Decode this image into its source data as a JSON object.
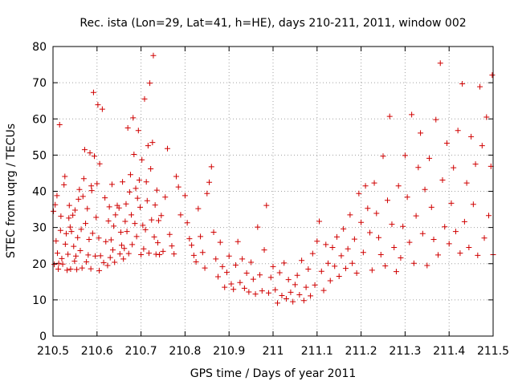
{
  "chart_data": {
    "type": "scatter",
    "title": "Rec. ista (Lon=29, Lat=41, h=HE), days 210-211, 2011, window 002",
    "xlabel": "GPS time / Days of year 2011",
    "ylabel": "STEC from uqrg / TECUs",
    "xlim": [
      210.5,
      211.5
    ],
    "ylim": [
      0,
      80
    ],
    "x_ticks": [
      210.5,
      210.6,
      210.7,
      210.8,
      210.9,
      211,
      211.1,
      211.2,
      211.3,
      211.4,
      211.5
    ],
    "x_tick_labels": [
      "210.5",
      "210.6",
      "210.7",
      "210.8",
      "210.9",
      "211",
      "211.1",
      "211.2",
      "211.3",
      "211.4",
      "211.5"
    ],
    "y_ticks": [
      0,
      10,
      20,
      30,
      40,
      50,
      60,
      70,
      80
    ],
    "y_tick_labels": [
      "0",
      "10",
      "20",
      "30",
      "40",
      "50",
      "60",
      "70",
      "80"
    ],
    "grid": true,
    "marker": "+",
    "color": "#d00000",
    "points": [
      [
        210.501,
        34.5
      ],
      [
        210.503,
        19.8
      ],
      [
        210.505,
        36.3
      ],
      [
        210.507,
        26.3
      ],
      [
        210.509,
        38.8
      ],
      [
        210.51,
        22.9
      ],
      [
        210.512,
        18.5
      ],
      [
        210.513,
        20.1
      ],
      [
        210.515,
        58.4
      ],
      [
        210.517,
        29.2
      ],
      [
        210.518,
        33.1
      ],
      [
        210.52,
        21.4
      ],
      [
        210.522,
        19.9
      ],
      [
        210.525,
        41.8
      ],
      [
        210.527,
        44.1
      ],
      [
        210.528,
        25.4
      ],
      [
        210.53,
        28.3
      ],
      [
        210.532,
        18.2
      ],
      [
        210.534,
        22.6
      ],
      [
        210.536,
        32.6
      ],
      [
        210.537,
        36.1
      ],
      [
        210.539,
        30.1
      ],
      [
        210.54,
        18.5
      ],
      [
        210.542,
        28.9
      ],
      [
        210.545,
        33.4
      ],
      [
        210.547,
        24.8
      ],
      [
        210.549,
        20.7
      ],
      [
        210.55,
        34.8
      ],
      [
        210.552,
        22.1
      ],
      [
        210.554,
        18.4
      ],
      [
        210.556,
        27.2
      ],
      [
        210.558,
        37.8
      ],
      [
        210.56,
        40.5
      ],
      [
        210.562,
        23.6
      ],
      [
        210.564,
        29.5
      ],
      [
        210.566,
        18.8
      ],
      [
        210.568,
        38.6
      ],
      [
        210.57,
        43.5
      ],
      [
        210.572,
        51.5
      ],
      [
        210.574,
        31.1
      ],
      [
        210.576,
        20.5
      ],
      [
        210.578,
        35.2
      ],
      [
        210.58,
        22.4
      ],
      [
        210.582,
        26.7
      ],
      [
        210.584,
        50.6
      ],
      [
        210.586,
        18.6
      ],
      [
        210.587,
        41.5
      ],
      [
        210.588,
        40.2
      ],
      [
        210.59,
        28.4
      ],
      [
        210.592,
        67.3
      ],
      [
        210.594,
        49.7
      ],
      [
        210.596,
        22.1
      ],
      [
        210.598,
        32.8
      ],
      [
        210.6,
        42.1
      ],
      [
        210.602,
        63.9
      ],
      [
        210.604,
        27.1
      ],
      [
        210.605,
        18.1
      ],
      [
        210.606,
        47.6
      ],
      [
        210.608,
        22.2
      ],
      [
        210.612,
        62.7
      ],
      [
        210.615,
        20.3
      ],
      [
        210.618,
        38.2
      ],
      [
        210.62,
        26.1
      ],
      [
        210.624,
        19.5
      ],
      [
        210.626,
        31.8
      ],
      [
        210.628,
        35.7
      ],
      [
        210.63,
        21.7
      ],
      [
        210.632,
        26.6
      ],
      [
        210.634,
        41.9
      ],
      [
        210.636,
        23.8
      ],
      [
        210.638,
        30.4
      ],
      [
        210.64,
        20.4
      ],
      [
        210.642,
        33.5
      ],
      [
        210.646,
        36.1
      ],
      [
        210.65,
        35.4
      ],
      [
        210.652,
        22.7
      ],
      [
        210.654,
        28.7
      ],
      [
        210.656,
        25.1
      ],
      [
        210.658,
        42.6
      ],
      [
        210.66,
        21.3
      ],
      [
        210.662,
        24.2
      ],
      [
        210.664,
        31.7
      ],
      [
        210.666,
        36.5
      ],
      [
        210.668,
        28.9
      ],
      [
        210.67,
        57.5
      ],
      [
        210.672,
        22.8
      ],
      [
        210.674,
        39.8
      ],
      [
        210.676,
        44.6
      ],
      [
        210.678,
        33.5
      ],
      [
        210.68,
        25.3
      ],
      [
        210.682,
        60.3
      ],
      [
        210.684,
        50.2
      ],
      [
        210.686,
        31.1
      ],
      [
        210.688,
        40.8
      ],
      [
        210.69,
        27.5
      ],
      [
        210.692,
        38.1
      ],
      [
        210.694,
        56.8
      ],
      [
        210.696,
        43.1
      ],
      [
        210.698,
        35.6
      ],
      [
        210.7,
        22.5
      ],
      [
        210.702,
        48.7
      ],
      [
        210.704,
        30.6
      ],
      [
        210.706,
        24.1
      ],
      [
        210.708,
        65.5
      ],
      [
        210.71,
        29.4
      ],
      [
        210.712,
        42.6
      ],
      [
        210.714,
        37.4
      ],
      [
        210.716,
        52.6
      ],
      [
        210.718,
        22.9
      ],
      [
        210.72,
        69.9
      ],
      [
        210.722,
        46.2
      ],
      [
        210.724,
        32.1
      ],
      [
        210.726,
        53.5
      ],
      [
        210.728,
        77.5
      ],
      [
        210.73,
        27.4
      ],
      [
        210.732,
        36.2
      ],
      [
        210.734,
        22.6
      ],
      [
        210.736,
        40.3
      ],
      [
        210.738,
        25.8
      ],
      [
        210.74,
        31.9
      ],
      [
        210.742,
        22.5
      ],
      [
        210.746,
        33.3
      ],
      [
        210.75,
        23.4
      ],
      [
        210.755,
        38.4
      ],
      [
        210.76,
        51.8
      ],
      [
        210.765,
        28.1
      ],
      [
        210.77,
        24.9
      ],
      [
        210.775,
        22.7
      ],
      [
        210.78,
        44.1
      ],
      [
        210.785,
        41.2
      ],
      [
        210.79,
        33.5
      ],
      [
        210.8,
        38.8
      ],
      [
        210.805,
        31.3
      ],
      [
        210.81,
        26.9
      ],
      [
        210.815,
        25.1
      ],
      [
        210.82,
        22.3
      ],
      [
        210.825,
        20.5
      ],
      [
        210.83,
        35.2
      ],
      [
        210.835,
        27.5
      ],
      [
        210.84,
        23.1
      ],
      [
        210.845,
        18.8
      ],
      [
        210.85,
        39.4
      ],
      [
        210.855,
        42.5
      ],
      [
        210.86,
        46.8
      ],
      [
        210.865,
        28.7
      ],
      [
        210.87,
        21.3
      ],
      [
        210.875,
        16.4
      ],
      [
        210.88,
        25.9
      ],
      [
        210.885,
        19.2
      ],
      [
        210.89,
        13.5
      ],
      [
        210.895,
        17.6
      ],
      [
        210.9,
        22.1
      ],
      [
        210.905,
        14.4
      ],
      [
        210.91,
        12.9
      ],
      [
        210.915,
        19.6
      ],
      [
        210.92,
        26.1
      ],
      [
        210.925,
        14.8
      ],
      [
        210.93,
        21.3
      ],
      [
        210.935,
        13.2
      ],
      [
        210.94,
        17.4
      ],
      [
        210.945,
        12.2
      ],
      [
        210.95,
        20.4
      ],
      [
        210.955,
        15.7
      ],
      [
        210.96,
        11.6
      ],
      [
        210.965,
        30.1
      ],
      [
        210.97,
        16.9
      ],
      [
        210.975,
        12.5
      ],
      [
        210.98,
        23.8
      ],
      [
        210.985,
        36.1
      ],
      [
        210.99,
        11.9
      ],
      [
        210.995,
        16.2
      ],
      [
        211,
        19.2
      ],
      [
        211.005,
        12.8
      ],
      [
        211.01,
        9.1
      ],
      [
        211.015,
        17.5
      ],
      [
        211.02,
        11.2
      ],
      [
        211.025,
        20.2
      ],
      [
        211.03,
        10.3
      ],
      [
        211.035,
        15.6
      ],
      [
        211.04,
        12.1
      ],
      [
        211.045,
        9.5
      ],
      [
        211.05,
        14.2
      ],
      [
        211.055,
        16.8
      ],
      [
        211.06,
        11.4
      ],
      [
        211.065,
        20.9
      ],
      [
        211.07,
        9.8
      ],
      [
        211.075,
        13.5
      ],
      [
        211.08,
        18.5
      ],
      [
        211.085,
        11.1
      ],
      [
        211.09,
        22.8
      ],
      [
        211.095,
        14.1
      ],
      [
        211.1,
        26.2
      ],
      [
        211.105,
        31.7
      ],
      [
        211.11,
        17.9
      ],
      [
        211.115,
        12.6
      ],
      [
        211.12,
        25.3
      ],
      [
        211.125,
        20.1
      ],
      [
        211.13,
        15.3
      ],
      [
        211.135,
        24.5
      ],
      [
        211.14,
        19.3
      ],
      [
        211.145,
        27.4
      ],
      [
        211.15,
        16.5
      ],
      [
        211.155,
        22.2
      ],
      [
        211.16,
        29.6
      ],
      [
        211.165,
        18.7
      ],
      [
        211.17,
        24.1
      ],
      [
        211.175,
        33.5
      ],
      [
        211.18,
        20.1
      ],
      [
        211.185,
        26.8
      ],
      [
        211.19,
        17.4
      ],
      [
        211.195,
        39.4
      ],
      [
        211.2,
        31.4
      ],
      [
        211.205,
        23.1
      ],
      [
        211.21,
        41.5
      ],
      [
        211.215,
        35.3
      ],
      [
        211.22,
        28.6
      ],
      [
        211.225,
        18.2
      ],
      [
        211.23,
        42.3
      ],
      [
        211.235,
        33.9
      ],
      [
        211.24,
        27.2
      ],
      [
        211.245,
        22.5
      ],
      [
        211.25,
        49.7
      ],
      [
        211.255,
        19.4
      ],
      [
        211.26,
        37.5
      ],
      [
        211.265,
        60.7
      ],
      [
        211.27,
        30.9
      ],
      [
        211.275,
        24.5
      ],
      [
        211.28,
        17.8
      ],
      [
        211.285,
        41.5
      ],
      [
        211.29,
        21.6
      ],
      [
        211.295,
        30.3
      ],
      [
        211.3,
        49.9
      ],
      [
        211.305,
        38.4
      ],
      [
        211.31,
        25.9
      ],
      [
        211.315,
        61.2
      ],
      [
        211.32,
        20.1
      ],
      [
        211.325,
        33.2
      ],
      [
        211.33,
        46.6
      ],
      [
        211.335,
        56.1
      ],
      [
        211.34,
        28.3
      ],
      [
        211.345,
        40.5
      ],
      [
        211.35,
        19.5
      ],
      [
        211.355,
        49.1
      ],
      [
        211.36,
        35.6
      ],
      [
        211.365,
        26.7
      ],
      [
        211.37,
        59.8
      ],
      [
        211.375,
        22.4
      ],
      [
        211.38,
        75.4
      ],
      [
        211.385,
        43.1
      ],
      [
        211.39,
        30.2
      ],
      [
        211.395,
        53.3
      ],
      [
        211.4,
        25.5
      ],
      [
        211.405,
        36.7
      ],
      [
        211.41,
        46.5
      ],
      [
        211.415,
        28.9
      ],
      [
        211.42,
        56.8
      ],
      [
        211.425,
        22.9
      ],
      [
        211.43,
        69.7
      ],
      [
        211.435,
        31.6
      ],
      [
        211.44,
        42.3
      ],
      [
        211.445,
        24.5
      ],
      [
        211.45,
        55.1
      ],
      [
        211.455,
        36.4
      ],
      [
        211.46,
        47.5
      ],
      [
        211.465,
        22.3
      ],
      [
        211.47,
        68.9
      ],
      [
        211.475,
        52.6
      ],
      [
        211.48,
        27.1
      ],
      [
        211.485,
        60.5
      ],
      [
        211.49,
        33.3
      ],
      [
        211.495,
        46.9
      ],
      [
        211.498,
        72.1
      ],
      [
        211.5,
        22.5
      ]
    ]
  }
}
